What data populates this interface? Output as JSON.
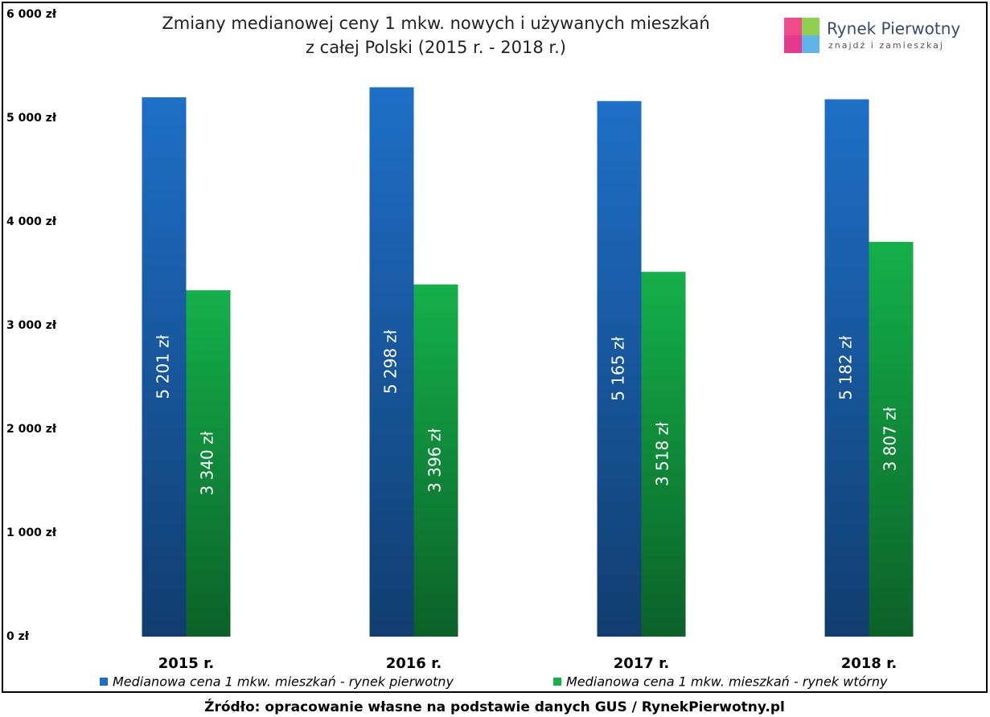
{
  "chart_data": {
    "type": "bar",
    "title": [
      "Zmiany medianowej ceny 1 mkw. nowych i używanych mieszkań",
      "z całej Polski (2015 r. - 2018 r.)"
    ],
    "logo": {
      "name": "Rynek Pierwotny",
      "tagline": "znajdź i zamieszkaj"
    },
    "source": "Źródło: opracowanie własne na podstawie danych GUS / RynekPierwotny.pl",
    "categories": [
      "2015 r.",
      "2016 r.",
      "2017 r.",
      "2018 r."
    ],
    "series": [
      {
        "name": "Medianowa cena 1 mkw. mieszkań - rynek pierwotny",
        "color": "#1e6fc8",
        "values": [
          5201,
          5298,
          5165,
          5182
        ],
        "value_labels": [
          "5 201 zł",
          "5 298 zł",
          "5 165 zł",
          "5 182 zł"
        ]
      },
      {
        "name": "Medianowa cena 1 mkw. mieszkań - rynek wtórny",
        "color": "#14b04a",
        "values": [
          3340,
          3396,
          3518,
          3807
        ],
        "value_labels": [
          "3 340 zł",
          "3 396 zł",
          "3 518 zł",
          "3 807 zł"
        ]
      }
    ],
    "ylim": [
      0,
      6000
    ],
    "yticks": [
      {
        "value": 0,
        "label": "0 zł"
      },
      {
        "value": 1000,
        "label": "1 000 zł"
      },
      {
        "value": 2000,
        "label": "2 000 zł"
      },
      {
        "value": 3000,
        "label": "3 000 zł"
      },
      {
        "value": 4000,
        "label": "4 000 zł"
      },
      {
        "value": 5000,
        "label": "5 000 zł"
      },
      {
        "value": 6000,
        "label": "6 000 zł"
      }
    ],
    "grid": false
  }
}
